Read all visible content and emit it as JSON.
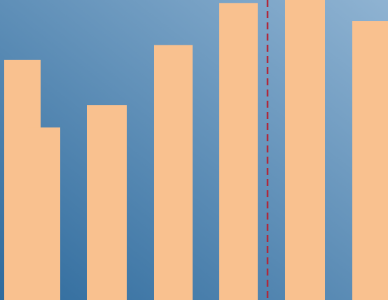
{
  "chart_data": {
    "type": "bar",
    "title": "",
    "xlabel": "",
    "ylabel": "",
    "bar_color": "#f9c18f",
    "reference_line_color": "#b0283a",
    "background_gradient": [
      "#2f6b9d",
      "#8fb3d2"
    ],
    "grid": false,
    "legend": "none",
    "ylim": [
      0,
      100
    ],
    "reference_line": {
      "style": "dashed",
      "after_bar_index": 5
    },
    "values": [
      80,
      57.5,
      65,
      85,
      99,
      100.5,
      93
    ]
  }
}
